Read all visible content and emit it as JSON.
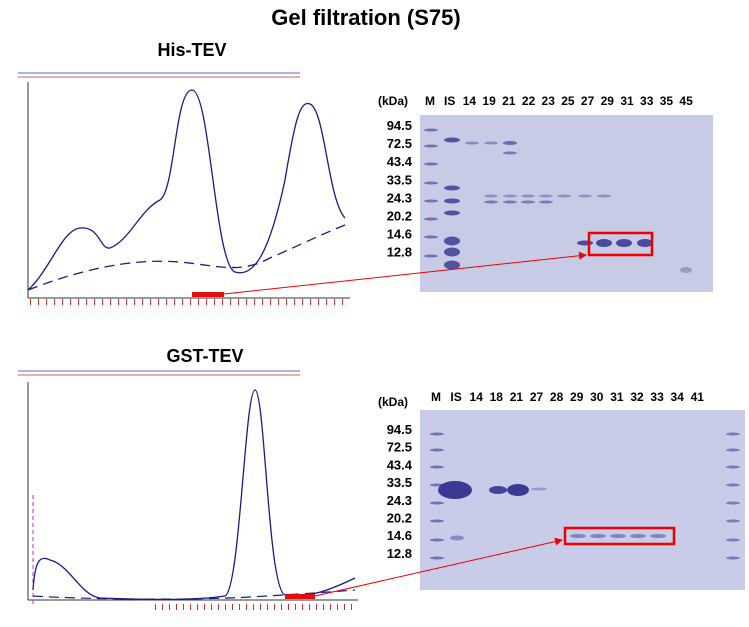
{
  "title": "Gel filtration (S75)",
  "panels": [
    {
      "name": "His-TEV",
      "unit": "(kDa)",
      "lanes": [
        "M",
        "IS",
        "14",
        "19",
        "21",
        "22",
        "23",
        "25",
        "27",
        "29",
        "31",
        "33",
        "35",
        "45"
      ],
      "markers": [
        "94.5",
        "72.5",
        "43.4",
        "33.5",
        "24.3",
        "20.2",
        "14.6",
        "12.8"
      ]
    },
    {
      "name": "GST-TEV",
      "unit": "(kDa)",
      "lanes": [
        "M",
        "IS",
        "14",
        "18",
        "21",
        "27",
        "28",
        "29",
        "30",
        "31",
        "32",
        "33",
        "34",
        "41"
      ],
      "markers": [
        "94.5",
        "72.5",
        "43.4",
        "33.5",
        "24.3",
        "20.2",
        "14.6",
        "12.8"
      ]
    }
  ]
}
